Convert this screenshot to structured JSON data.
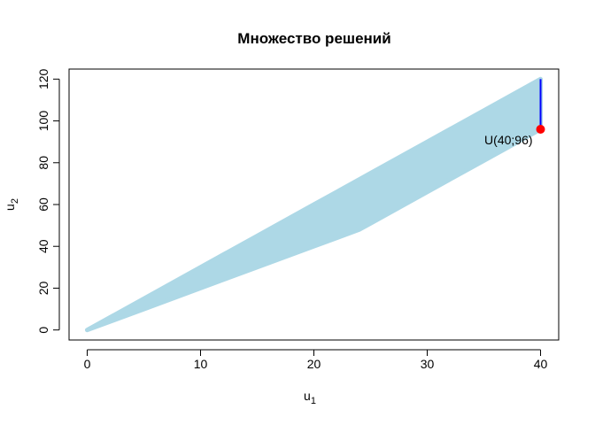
{
  "chart_data": {
    "type": "area",
    "title": "Множество решений",
    "xlabel": "u",
    "xlabel_sub": "1",
    "ylabel": "u",
    "ylabel_sub": "2",
    "xlim": [
      -1.6,
      41.6
    ],
    "ylim": [
      -4.8,
      124.8
    ],
    "x_ticks": [
      0,
      10,
      20,
      30,
      40
    ],
    "y_ticks": [
      0,
      20,
      40,
      60,
      80,
      100,
      120
    ],
    "grid": false,
    "region": {
      "x": [
        0,
        5,
        10,
        15,
        20,
        24,
        25,
        30,
        35,
        40
      ],
      "upper": [
        0,
        15,
        30,
        45,
        60,
        72,
        75,
        90,
        105,
        120
      ],
      "lower": [
        0,
        10,
        20,
        30,
        40,
        48,
        51,
        66,
        81,
        96
      ],
      "color": "#add8e6"
    },
    "segment": {
      "x": 40,
      "y_from": 96,
      "y_to": 120,
      "color": "#0000ff"
    },
    "point": {
      "x": 40,
      "y": 96,
      "color": "#ff0000",
      "label": "U(40;96)"
    }
  }
}
